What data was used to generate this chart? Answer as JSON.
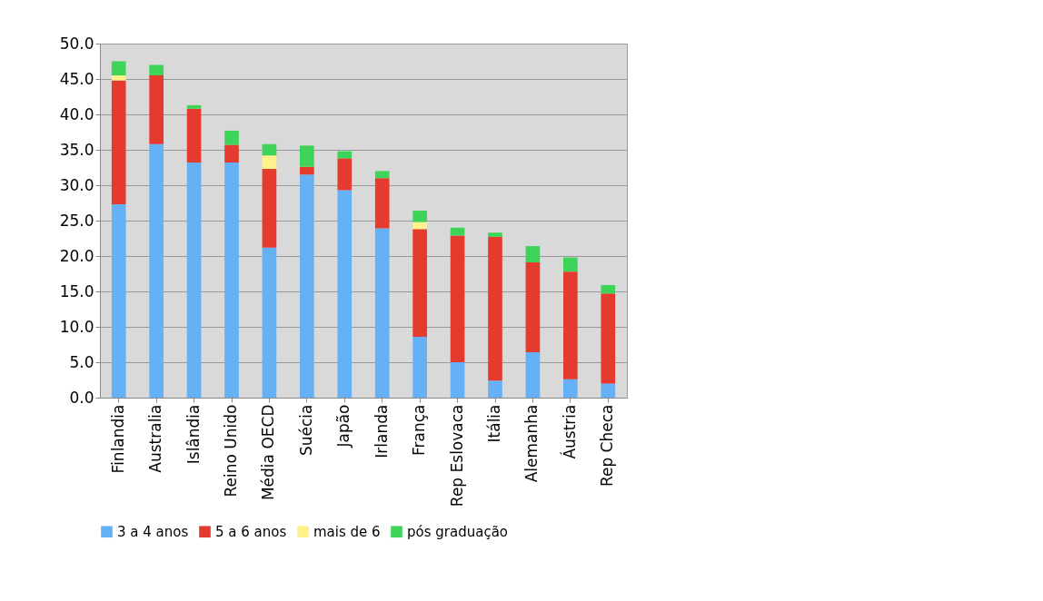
{
  "chart_data": {
    "type": "bar",
    "stacked": true,
    "categories": [
      "Finlandia",
      "Australia",
      "Islândia",
      "Reino Unido",
      "Média OECD",
      "Suécia",
      "Japão",
      "Irlanda",
      "França",
      "Rep Eslovaca",
      "Itália",
      "Alemanha",
      "Áustria",
      "Rep Checa"
    ],
    "series": [
      {
        "name": "3 a 4 anos",
        "color": "#66b0f5",
        "values": [
          27.3,
          35.8,
          33.2,
          33.2,
          21.2,
          31.5,
          29.3,
          23.9,
          8.6,
          5.0,
          2.4,
          6.4,
          2.6,
          2.0
        ]
      },
      {
        "name": "5 a 6 anos",
        "color": "#e53a2e",
        "values": [
          17.5,
          9.7,
          7.6,
          2.5,
          11.1,
          1.1,
          4.5,
          7.1,
          15.2,
          17.9,
          20.3,
          12.7,
          15.2,
          12.7
        ]
      },
      {
        "name": "mais de 6",
        "color": "#fff28a",
        "values": [
          0.7,
          0,
          0,
          0,
          1.9,
          0,
          0,
          0,
          1.0,
          0,
          0,
          0,
          0,
          0
        ]
      },
      {
        "name": "pós graduação",
        "color": "#3ed45a",
        "values": [
          2.0,
          1.5,
          0.5,
          2.0,
          1.6,
          3.0,
          1.0,
          1.0,
          1.6,
          1.1,
          0.6,
          2.3,
          2.0,
          1.2
        ]
      }
    ],
    "ylim": [
      0,
      50
    ],
    "yticks": [
      {
        "value": 0,
        "label": "0.0"
      },
      {
        "value": 5,
        "label": "5.0"
      },
      {
        "value": 10,
        "label": "10.0"
      },
      {
        "value": 15,
        "label": "15.0"
      },
      {
        "value": 20,
        "label": "20.0"
      },
      {
        "value": 25,
        "label": "25.0"
      },
      {
        "value": 30,
        "label": "30.0"
      },
      {
        "value": 35,
        "label": "35.0"
      },
      {
        "value": 40,
        "label": "40.0"
      },
      {
        "value": 45,
        "label": "45.0"
      },
      {
        "value": 50,
        "label": "50.0"
      }
    ],
    "grid": "y",
    "legend": "bottom"
  }
}
